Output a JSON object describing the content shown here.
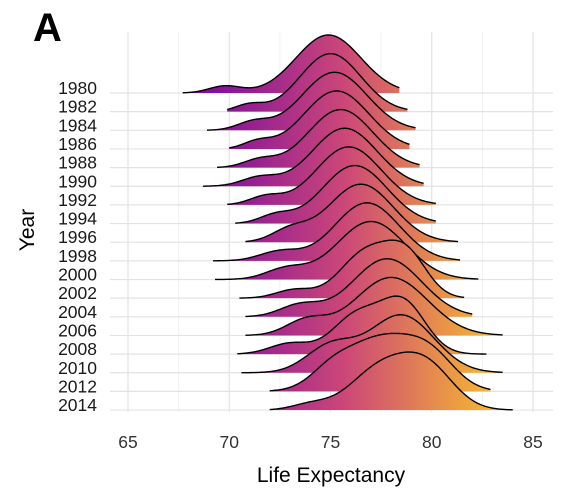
{
  "panel_label": "A",
  "chart_data": {
    "type": "ridgeline",
    "title": "",
    "xlabel": "Life Expectancy",
    "ylabel": "Year",
    "xlim": [
      64,
      86
    ],
    "x_ticks": [
      65,
      70,
      75,
      80,
      85
    ],
    "grid": true,
    "fill_gradient": {
      "low": "#6a00a8",
      "mid": "#cc4778",
      "high": "#fdca26"
    },
    "outline_color": "#000000",
    "series": [
      {
        "name": "1980",
        "min": 67.7,
        "max": 78.4,
        "components": [
          {
            "mu": 74.9,
            "sd": 1.6,
            "w": 1.0
          },
          {
            "mu": 69.8,
            "sd": 0.8,
            "w": 0.12
          }
        ]
      },
      {
        "name": "1982",
        "min": 69.9,
        "max": 78.8,
        "components": [
          {
            "mu": 75.0,
            "sd": 1.5,
            "w": 1.0
          },
          {
            "mu": 71.0,
            "sd": 0.7,
            "w": 0.12
          }
        ]
      },
      {
        "name": "1984",
        "min": 68.9,
        "max": 79.2,
        "components": [
          {
            "mu": 75.2,
            "sd": 1.6,
            "w": 1.0
          },
          {
            "mu": 71.2,
            "sd": 0.8,
            "w": 0.14
          }
        ]
      },
      {
        "name": "1986",
        "min": 70.0,
        "max": 78.9,
        "components": [
          {
            "mu": 75.3,
            "sd": 1.6,
            "w": 1.0
          },
          {
            "mu": 71.4,
            "sd": 0.7,
            "w": 0.12
          }
        ]
      },
      {
        "name": "1988",
        "min": 69.4,
        "max": 79.4,
        "components": [
          {
            "mu": 75.5,
            "sd": 1.6,
            "w": 1.0
          },
          {
            "mu": 71.5,
            "sd": 0.8,
            "w": 0.13
          }
        ]
      },
      {
        "name": "1990",
        "min": 68.7,
        "max": 79.6,
        "components": [
          {
            "mu": 75.7,
            "sd": 1.6,
            "w": 1.0
          },
          {
            "mu": 71.5,
            "sd": 0.9,
            "w": 0.15
          }
        ]
      },
      {
        "name": "1992",
        "min": 69.9,
        "max": 80.2,
        "components": [
          {
            "mu": 75.9,
            "sd": 1.6,
            "w": 1.0
          },
          {
            "mu": 71.8,
            "sd": 0.8,
            "w": 0.14
          }
        ]
      },
      {
        "name": "1994",
        "min": 70.3,
        "max": 80.2,
        "components": [
          {
            "mu": 76.2,
            "sd": 1.6,
            "w": 1.0
          },
          {
            "mu": 72.3,
            "sd": 0.8,
            "w": 0.14
          }
        ]
      },
      {
        "name": "1996",
        "min": 70.8,
        "max": 81.3,
        "components": [
          {
            "mu": 76.5,
            "sd": 1.6,
            "w": 1.0
          },
          {
            "mu": 73.0,
            "sd": 0.9,
            "w": 0.2
          }
        ]
      },
      {
        "name": "1998",
        "min": 69.2,
        "max": 81.4,
        "components": [
          {
            "mu": 76.8,
            "sd": 1.6,
            "w": 1.0
          },
          {
            "mu": 72.5,
            "sd": 1.0,
            "w": 0.16
          }
        ]
      },
      {
        "name": "2000",
        "min": 69.3,
        "max": 82.3,
        "components": [
          {
            "mu": 77.0,
            "sd": 1.7,
            "w": 1.0
          },
          {
            "mu": 72.8,
            "sd": 1.0,
            "w": 0.18
          }
        ]
      },
      {
        "name": "2002",
        "min": 70.5,
        "max": 81.6,
        "components": [
          {
            "mu": 76.8,
            "sd": 1.3,
            "w": 0.85
          },
          {
            "mu": 78.8,
            "sd": 1.0,
            "w": 0.7
          },
          {
            "mu": 73.2,
            "sd": 0.9,
            "w": 0.15
          }
        ]
      },
      {
        "name": "2004",
        "min": 70.8,
        "max": 82.0,
        "components": [
          {
            "mu": 77.8,
            "sd": 1.7,
            "w": 1.0
          },
          {
            "mu": 73.5,
            "sd": 1.0,
            "w": 0.2
          }
        ]
      },
      {
        "name": "2006",
        "min": 70.8,
        "max": 83.5,
        "components": [
          {
            "mu": 78.0,
            "sd": 1.8,
            "w": 1.0
          },
          {
            "mu": 73.8,
            "sd": 1.0,
            "w": 0.25
          }
        ]
      },
      {
        "name": "2008",
        "min": 70.4,
        "max": 82.7,
        "components": [
          {
            "mu": 76.3,
            "sd": 1.2,
            "w": 0.65
          },
          {
            "mu": 78.6,
            "sd": 1.1,
            "w": 0.85
          },
          {
            "mu": 73.0,
            "sd": 1.0,
            "w": 0.18
          }
        ]
      },
      {
        "name": "2010",
        "min": 70.6,
        "max": 83.5,
        "components": [
          {
            "mu": 78.5,
            "sd": 1.6,
            "w": 1.0
          },
          {
            "mu": 75.0,
            "sd": 1.2,
            "w": 0.45
          }
        ]
      },
      {
        "name": "2012",
        "min": 72.0,
        "max": 82.9,
        "components": [
          {
            "mu": 77.5,
            "sd": 1.8,
            "w": 1.0
          },
          {
            "mu": 80.0,
            "sd": 1.2,
            "w": 0.5
          },
          {
            "mu": 75.0,
            "sd": 1.0,
            "w": 0.25
          }
        ]
      },
      {
        "name": "2014",
        "min": 72.0,
        "max": 84.0,
        "components": [
          {
            "mu": 77.5,
            "sd": 1.5,
            "w": 0.9
          },
          {
            "mu": 79.8,
            "sd": 1.3,
            "w": 0.85
          },
          {
            "mu": 74.0,
            "sd": 0.9,
            "w": 0.12
          }
        ]
      }
    ]
  }
}
